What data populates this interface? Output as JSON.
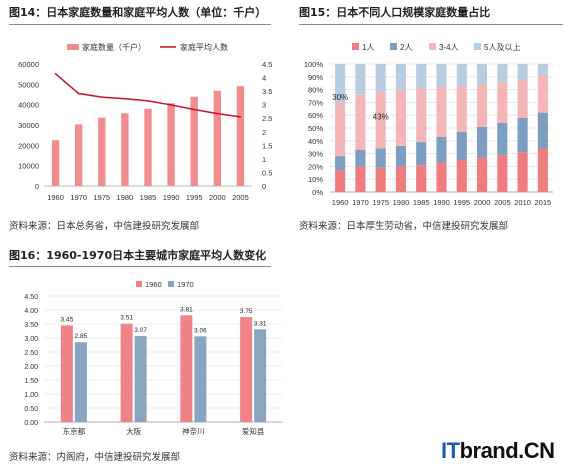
{
  "fig14": {
    "title": "图14：日本家庭数量和家庭平均人数（单位：千户）",
    "source": "资料来源：日本总务省，中信建投研究发展部"
  },
  "fig15": {
    "title": "图15：日本不同人口规模家庭数量占比",
    "source": "资料来源：日本厚生劳动省，中信建投研究发展部"
  },
  "fig16": {
    "title": "图16：1960-1970日本主要城市家庭平均人数变化",
    "source": "资料来源：内阁府，中信建投研究发展部"
  },
  "watermark": {
    "prefix": "IT",
    "rest": "brand.CN"
  },
  "chart_data": [
    {
      "id": "fig14",
      "type": "bar",
      "categories": [
        "1960",
        "1970",
        "1975",
        "1980",
        "1985",
        "1990",
        "1995",
        "2000",
        "2005"
      ],
      "series": [
        {
          "name": "家庭数量（千户）",
          "type": "bar",
          "axis": "left",
          "values": [
            22500,
            30300,
            33600,
            35800,
            38000,
            40700,
            43900,
            46800,
            49100
          ]
        },
        {
          "name": "家庭平均人数",
          "type": "line",
          "axis": "right",
          "values": [
            4.14,
            3.41,
            3.28,
            3.22,
            3.14,
            2.99,
            2.82,
            2.67,
            2.55
          ]
        }
      ],
      "ylim_left": [
        0,
        60000
      ],
      "yticks_left": [
        "0",
        "10000",
        "20000",
        "30000",
        "40000",
        "50000",
        "60000"
      ],
      "ylim_right": [
        0,
        4.5
      ],
      "yticks_right": [
        "0",
        "0.5",
        "1",
        "1.5",
        "2",
        "2.5",
        "3",
        "3.5",
        "4",
        "4.5"
      ],
      "legend_position": "top",
      "colors": {
        "bar": "#ef8d8f",
        "line": "#c8102e"
      }
    },
    {
      "id": "fig15",
      "type": "bar",
      "stacked": true,
      "categories": [
        "1960",
        "1970",
        "1975",
        "1980",
        "1985",
        "1990",
        "1995",
        "2000",
        "2005",
        "2010",
        "2015"
      ],
      "series": [
        {
          "name": "1人",
          "color": "#ef7d80",
          "values": [
            17,
            20,
            19,
            20,
            21,
            23,
            25,
            27,
            29,
            31,
            34
          ]
        },
        {
          "name": "2人",
          "color": "#7d9ec0",
          "values": [
            11,
            13,
            15,
            16,
            18,
            20,
            22,
            24,
            25,
            27,
            28
          ]
        },
        {
          "name": "3-4人",
          "color": "#f5b6b8",
          "values": [
            42,
            43,
            44,
            44,
            42,
            39,
            36,
            33,
            32,
            30,
            29
          ]
        },
        {
          "name": "5人及以上",
          "color": "#b8cde0",
          "values": [
            30,
            24,
            22,
            20,
            19,
            18,
            17,
            16,
            14,
            12,
            9
          ]
        }
      ],
      "annotations": [
        "30%",
        "43%"
      ],
      "ylim": [
        0,
        100
      ],
      "yticks": [
        "0%",
        "10%",
        "20%",
        "30%",
        "40%",
        "50%",
        "60%",
        "70%",
        "80%",
        "90%",
        "100%"
      ],
      "legend_position": "top"
    },
    {
      "id": "fig16",
      "type": "bar",
      "categories": [
        "东京都",
        "大阪",
        "神奈川",
        "爱知县"
      ],
      "series": [
        {
          "name": "1960",
          "color": "#ef8387",
          "values": [
            3.45,
            3.51,
            3.81,
            3.75
          ]
        },
        {
          "name": "1970",
          "color": "#8aa6be",
          "values": [
            2.85,
            3.07,
            3.06,
            3.31
          ]
        }
      ],
      "value_labels": [
        [
          "3.45",
          "3.51",
          "3.81",
          "3.75"
        ],
        [
          "2.85",
          "3.07",
          "3.06",
          "3.31"
        ]
      ],
      "ylim": [
        0,
        4.5
      ],
      "yticks": [
        "0.00",
        "0.50",
        "1.00",
        "1.50",
        "2.00",
        "2.50",
        "3.00",
        "3.50",
        "4.00",
        "4.50"
      ],
      "legend_position": "top"
    }
  ]
}
